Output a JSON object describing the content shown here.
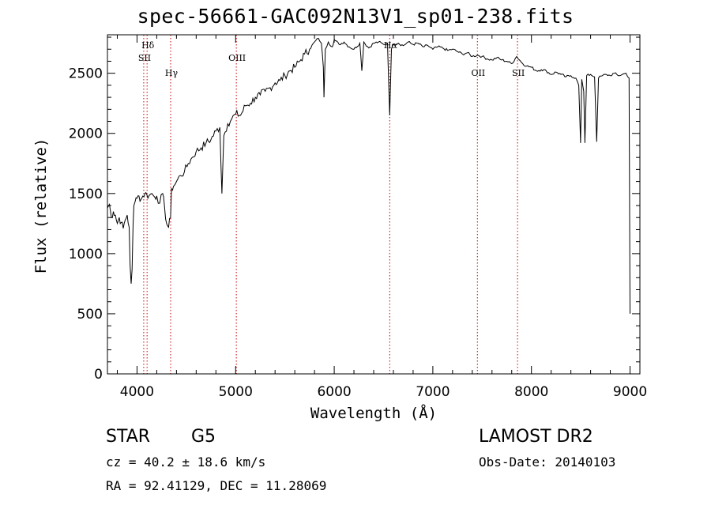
{
  "chart_data": {
    "type": "line",
    "title": "spec-56661-GAC092N13V1_sp01-238.fits",
    "xlabel": "Wavelength (Å)",
    "ylabel": "Flux (relative)",
    "xlim": [
      3700,
      9100
    ],
    "ylim": [
      0,
      2820
    ],
    "xticks": [
      4000,
      5000,
      6000,
      7000,
      8000,
      9000
    ],
    "yticks": [
      0,
      500,
      1000,
      1500,
      2000,
      2500
    ],
    "series": [
      {
        "x": [
          3700,
          3720,
          3740,
          3760,
          3780,
          3800,
          3820,
          3840,
          3860,
          3880,
          3900,
          3920,
          3930,
          3940,
          3950,
          3960,
          3968,
          3980,
          4000,
          4020,
          4040,
          4060,
          4080,
          4100,
          4120,
          4150,
          4180,
          4200,
          4230,
          4260,
          4280,
          4300,
          4320,
          4340,
          4350,
          4370,
          4400,
          4440,
          4480,
          4520,
          4560,
          4600,
          4650,
          4700,
          4750,
          4800,
          4840,
          4861,
          4880,
          4920,
          4960,
          5000,
          5050,
          5100,
          5150,
          5200,
          5250,
          5300,
          5350,
          5400,
          5450,
          5500,
          5550,
          5600,
          5650,
          5700,
          5750,
          5800,
          5840,
          5870,
          5890,
          5896,
          5910,
          5940,
          5980,
          6000,
          6050,
          6100,
          6150,
          6200,
          6260,
          6280,
          6300,
          6350,
          6400,
          6450,
          6500,
          6540,
          6563,
          6580,
          6600,
          6650,
          6700,
          6750,
          6800,
          6850,
          6900,
          6950,
          7000,
          7050,
          7100,
          7150,
          7200,
          7250,
          7300,
          7350,
          7400,
          7450,
          7500,
          7550,
          7600,
          7650,
          7700,
          7750,
          7800,
          7850,
          7900,
          7950,
          8000,
          8050,
          8100,
          8150,
          8200,
          8250,
          8300,
          8350,
          8400,
          8450,
          8480,
          8498,
          8510,
          8530,
          8542,
          8560,
          8600,
          8640,
          8662,
          8680,
          8720,
          8760,
          8800,
          8840,
          8880,
          8920,
          8960,
          8990,
          9000
        ],
        "y": [
          1380,
          1410,
          1300,
          1350,
          1320,
          1250,
          1300,
          1260,
          1210,
          1280,
          1320,
          1220,
          900,
          750,
          870,
          1250,
          1400,
          1430,
          1460,
          1480,
          1450,
          1480,
          1500,
          1490,
          1480,
          1500,
          1470,
          1480,
          1420,
          1500,
          1380,
          1250,
          1220,
          1300,
          1540,
          1560,
          1600,
          1650,
          1680,
          1750,
          1800,
          1850,
          1880,
          1920,
          1950,
          2020,
          2050,
          1500,
          1980,
          2080,
          2120,
          2160,
          2150,
          2230,
          2250,
          2300,
          2320,
          2350,
          2380,
          2420,
          2440,
          2480,
          2520,
          2550,
          2600,
          2660,
          2700,
          2760,
          2790,
          2750,
          2550,
          2300,
          2700,
          2760,
          2720,
          2780,
          2740,
          2760,
          2720,
          2700,
          2750,
          2520,
          2760,
          2710,
          2750,
          2760,
          2740,
          2750,
          2150,
          2700,
          2740,
          2750,
          2730,
          2760,
          2740,
          2750,
          2720,
          2730,
          2700,
          2720,
          2710,
          2690,
          2700,
          2680,
          2660,
          2670,
          2640,
          2650,
          2640,
          2620,
          2610,
          2630,
          2610,
          2600,
          2580,
          2640,
          2590,
          2560,
          2550,
          2520,
          2530,
          2520,
          2490,
          2510,
          2490,
          2470,
          2480,
          2460,
          2400,
          1920,
          2450,
          2350,
          1920,
          2480,
          2490,
          2470,
          1930,
          2460,
          2480,
          2490,
          2480,
          2500,
          2480,
          2490,
          2500,
          2460,
          500
        ]
      }
    ],
    "line_markers": [
      {
        "label": "Hδ",
        "x": 4102,
        "level": 1
      },
      {
        "label": "SII",
        "x": 4068,
        "level": 2
      },
      {
        "label": "Hγ",
        "x": 4341,
        "level": 3
      },
      {
        "label": "OIII",
        "x": 5007,
        "level": 2
      },
      {
        "label": "Hα",
        "x": 6563,
        "level": 1
      },
      {
        "label": "OII",
        "x": 7452,
        "level": 3
      },
      {
        "label": "SII",
        "x": 7859,
        "level": 3
      }
    ],
    "colors": {
      "spectrum": "#000000",
      "marker_lines": "#cc0000"
    },
    "grid": false
  },
  "info": {
    "class_label": "STAR",
    "subclass_label": "G5",
    "survey_label": "LAMOST DR2",
    "redshift_text": "cz = 40.2 ± 18.6 km/s",
    "obs_date_text": "Obs-Date: 20140103",
    "coords_text": "RA =  92.41129, DEC =  11.28069"
  }
}
